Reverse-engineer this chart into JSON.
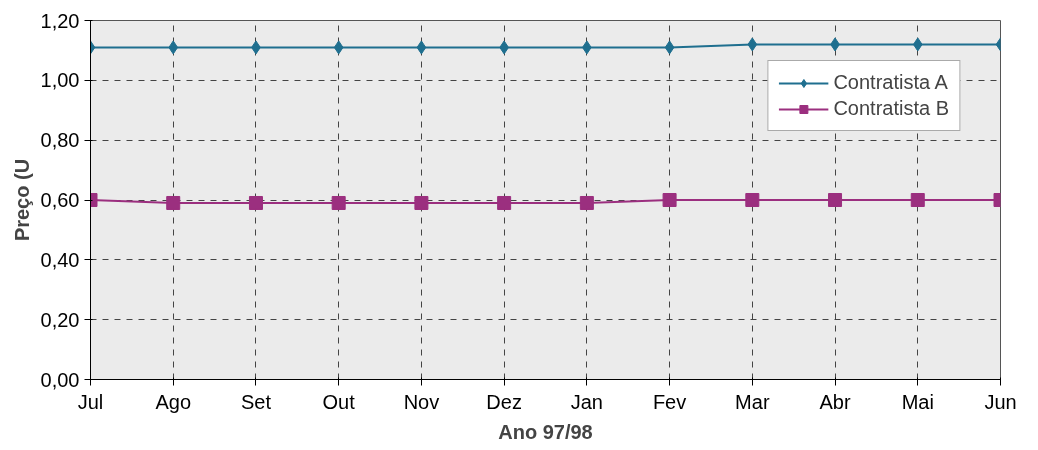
{
  "chart_data": {
    "type": "line",
    "xlabel": "Ano 97/98",
    "ylabel": "Preço (U",
    "categories": [
      "Jul",
      "Ago",
      "Set",
      "Out",
      "Nov",
      "Dez",
      "Jan",
      "Fev",
      "Mar",
      "Abr",
      "Mai",
      "Jun"
    ],
    "series": [
      {
        "name": "Contratista A",
        "color": "#1f6f8f",
        "marker": "diamond",
        "values": [
          1.11,
          1.11,
          1.11,
          1.11,
          1.11,
          1.11,
          1.11,
          1.11,
          1.12,
          1.12,
          1.12,
          1.12
        ]
      },
      {
        "name": "Contratista B",
        "color": "#9b2f7f",
        "marker": "square",
        "values": [
          0.6,
          0.59,
          0.59,
          0.59,
          0.59,
          0.59,
          0.59,
          0.6,
          0.6,
          0.6,
          0.6,
          0.6
        ]
      }
    ],
    "ylim": [
      0,
      1.2
    ],
    "yticks": [
      {
        "value": 0,
        "label": "0,00"
      },
      {
        "value": 0.2,
        "label": "0,20"
      },
      {
        "value": 0.4,
        "label": "0,40"
      },
      {
        "value": 0.6,
        "label": "0,60"
      },
      {
        "value": 0.8,
        "label": "0,80"
      },
      {
        "value": 1.0,
        "label": "1,00"
      },
      {
        "value": 1.2,
        "label": "1,20"
      }
    ],
    "grid": true,
    "legend": "top right",
    "line_style": "solid"
  }
}
